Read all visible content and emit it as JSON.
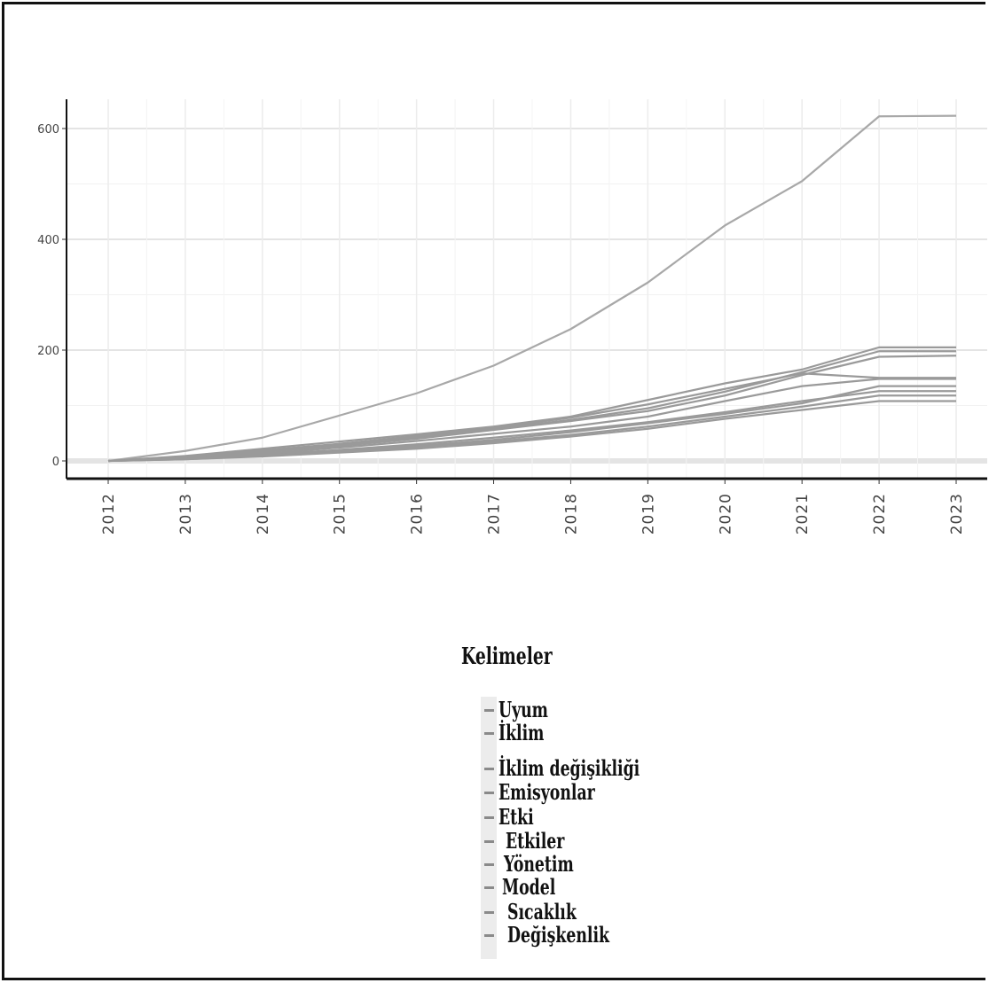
{
  "chart_data": {
    "type": "line",
    "x": [
      2012,
      2013,
      2014,
      2015,
      2016,
      2017,
      2018,
      2019,
      2020,
      2021,
      2022,
      2023
    ],
    "xlabel": "",
    "ylabel": "",
    "ylim": [
      -35,
      655
    ],
    "yticks": [
      0,
      200,
      400,
      600
    ],
    "grid": true,
    "legend_title": "Kelimeler",
    "legend_position": "bottom",
    "line_color": "#9a9a9a",
    "series": [
      {
        "name": "Uyum",
        "values": [
          0,
          4,
          11,
          20,
          30,
          42,
          55,
          70,
          88,
          108,
          126,
          126
        ]
      },
      {
        "name": "İklim",
        "values": [
          0,
          18,
          42,
          82,
          122,
          172,
          238,
          322,
          425,
          505,
          622,
          623
        ]
      },
      {
        "name": "İklim değişikliği",
        "values": [
          0,
          9,
          22,
          35,
          48,
          62,
          80,
          110,
          140,
          165,
          205,
          205
        ]
      },
      {
        "name": "Emisyonlar",
        "values": [
          0,
          7,
          17,
          29,
          43,
          58,
          74,
          95,
          125,
          160,
          198,
          198
        ]
      },
      {
        "name": "Etki",
        "values": [
          0,
          6,
          16,
          27,
          40,
          56,
          72,
          90,
          118,
          155,
          188,
          190
        ]
      },
      {
        "name": "Etkiler",
        "values": [
          0,
          8,
          19,
          31,
          45,
          60,
          78,
          102,
          130,
          158,
          150,
          150
        ]
      },
      {
        "name": "Yönetim",
        "values": [
          0,
          5,
          13,
          24,
          36,
          49,
          62,
          80,
          108,
          135,
          148,
          148
        ]
      },
      {
        "name": "Model",
        "values": [
          0,
          4,
          10,
          18,
          27,
          38,
          52,
          68,
          85,
          104,
          135,
          135
        ]
      },
      {
        "name": "Sıcaklık",
        "values": [
          0,
          3,
          9,
          17,
          25,
          35,
          47,
          62,
          80,
          98,
          118,
          118
        ]
      },
      {
        "name": "Değişkenlik",
        "values": [
          0,
          3,
          8,
          15,
          22,
          32,
          44,
          58,
          76,
          92,
          108,
          108
        ]
      }
    ]
  }
}
